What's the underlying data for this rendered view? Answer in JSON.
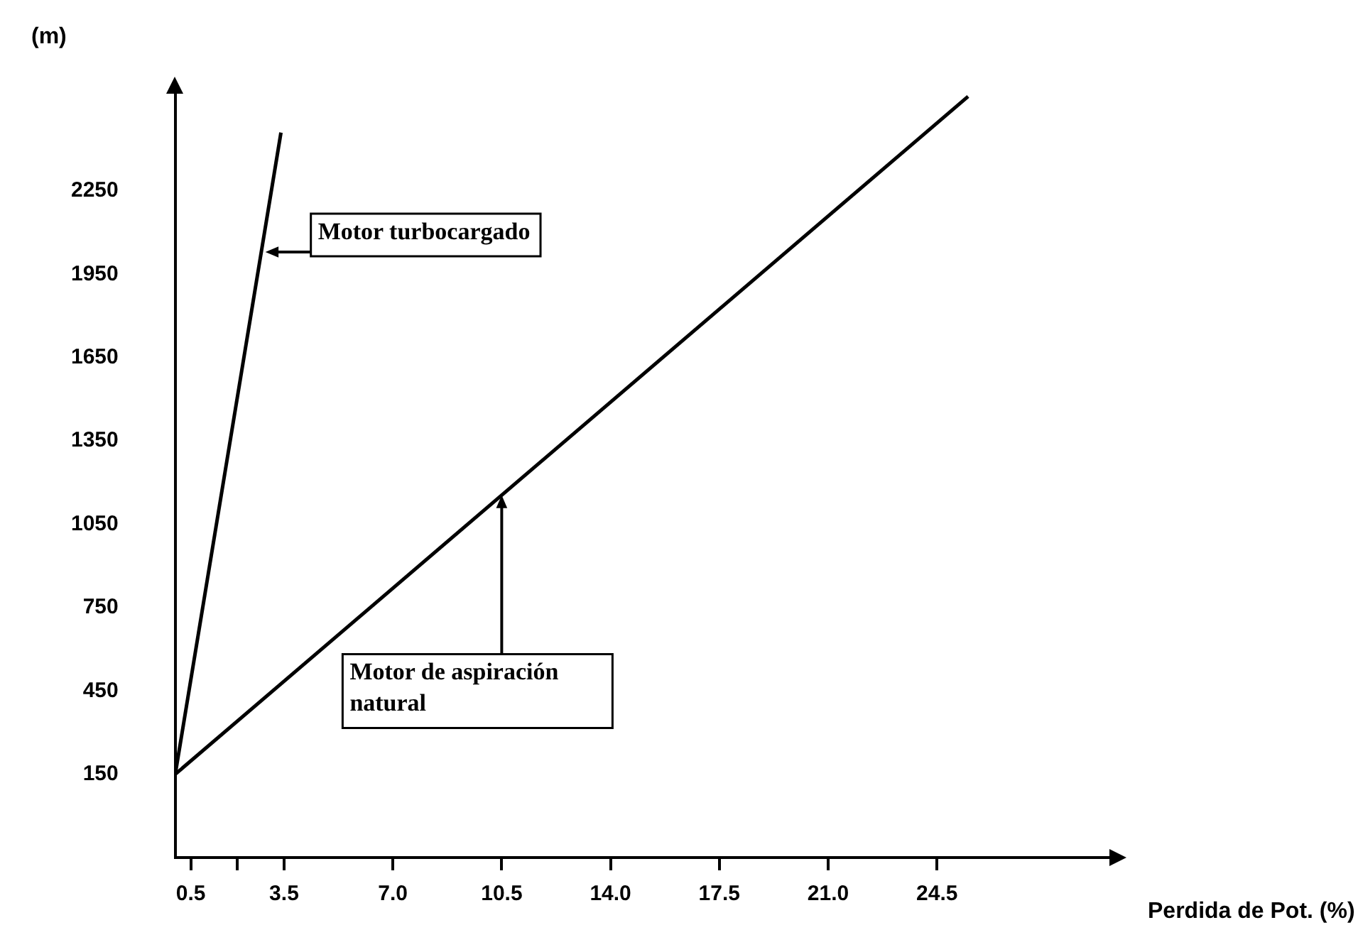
{
  "chart_data": {
    "type": "line",
    "xlabel": "Perdida de Pot. (%)",
    "ylabel": "(m)",
    "series": [
      {
        "color": "#000000",
        "x": [
          0,
          3.4
        ],
        "values": [
          150,
          2460
        ]
      },
      {
        "color": "#000000",
        "x": [
          0,
          25.5
        ],
        "values": [
          150,
          2590
        ]
      }
    ],
    "xlim": [
      0,
      30
    ],
    "xticks": [
      0.5,
      {
        "value": 2,
        "label": null
      },
      3.5,
      {
        "value": 7,
        "label": "7.0"
      },
      10.5,
      {
        "value": 14,
        "label": "14.0"
      },
      17.5,
      {
        "value": 21,
        "label": "21.0"
      },
      24.5
    ],
    "ylim": [
      -150,
      2600
    ],
    "yticks": [
      150,
      450,
      750,
      1050,
      1350,
      1650,
      1950,
      2250
    ],
    "annotations": [
      {
        "text": "Motor turbocargado",
        "x": 2.9,
        "y": 2030
      },
      {
        "text": "Motor de aspiración natural",
        "x": 10.5,
        "y": 1155
      }
    ],
    "grid": false,
    "legend": false,
    "marker": "none",
    "line_style": "solid"
  }
}
